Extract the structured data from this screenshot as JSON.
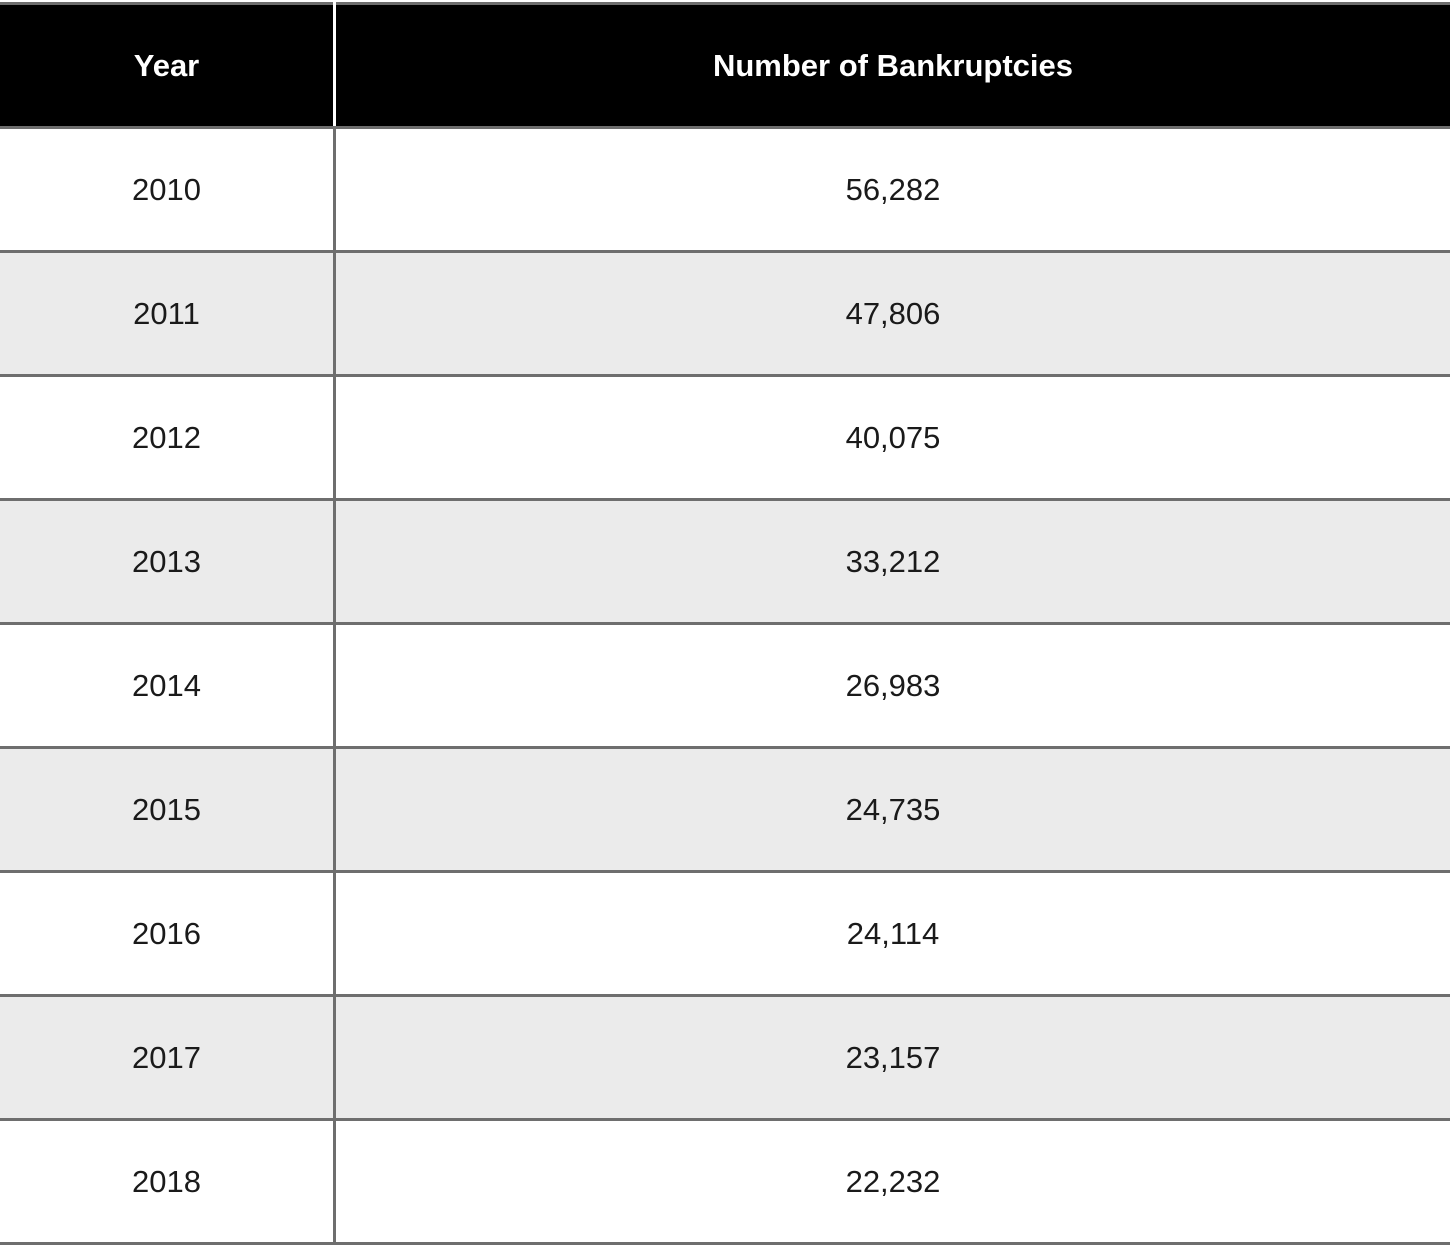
{
  "table": {
    "columns": [
      "Year",
      "Number of Bankruptcies"
    ],
    "rows": [
      [
        "2010",
        "56,282"
      ],
      [
        "2011",
        "47,806"
      ],
      [
        "2012",
        "40,075"
      ],
      [
        "2013",
        "33,212"
      ],
      [
        "2014",
        "26,983"
      ],
      [
        "2015",
        "24,735"
      ],
      [
        "2016",
        "24,114"
      ],
      [
        "2017",
        "23,157"
      ],
      [
        "2018",
        "22,232"
      ]
    ]
  },
  "chart_data": {
    "type": "table",
    "title": "",
    "columns": [
      "Year",
      "Number of Bankruptcies"
    ],
    "categories": [
      "2010",
      "2011",
      "2012",
      "2013",
      "2014",
      "2015",
      "2016",
      "2017",
      "2018"
    ],
    "values": [
      56282,
      47806,
      40075,
      33212,
      26983,
      24735,
      24114,
      23157,
      22232
    ],
    "layout": {
      "header_style": "black-bar",
      "row_striping": "alternating",
      "text_alignment": "center"
    }
  },
  "colors": {
    "header_bg": "#000000",
    "header_text": "#ffffff",
    "row_bg": "#ffffff",
    "row_alt_bg": "#ebebeb",
    "border": "#6e6e6e",
    "cell_text": "#1a1a1a"
  }
}
